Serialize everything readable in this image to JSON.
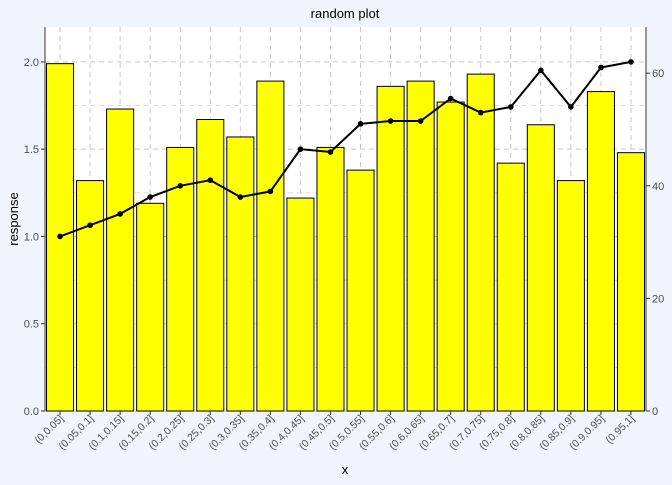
{
  "chart_data": {
    "type": "bar",
    "title": "random plot",
    "xlabel": "x",
    "ylabel": "response",
    "categories": [
      "(0,0.05]",
      "(0.05,0.1]",
      "(0.1,0.15]",
      "(0.15,0.2]",
      "(0.2,0.25]",
      "(0.25,0.3]",
      "(0.3,0.35]",
      "(0.35,0.4]",
      "(0.4,0.45]",
      "(0.45,0.5]",
      "(0.5,0.55]",
      "(0.55,0.6]",
      "(0.6,0.65]",
      "(0.65,0.7]",
      "(0.7,0.75]",
      "(0.75,0.8]",
      "(0.8,0.85]",
      "(0.85,0.9]",
      "(0.9,0.95]",
      "(0.95,1]"
    ],
    "series": [
      {
        "type": "bar",
        "axis": "left",
        "values": [
          1.99,
          1.32,
          1.73,
          1.19,
          1.51,
          1.67,
          1.57,
          1.89,
          1.22,
          1.51,
          1.38,
          1.86,
          1.89,
          1.77,
          1.93,
          1.42,
          1.64,
          1.32,
          1.83,
          1.48
        ],
        "fill": "#ffff00",
        "stroke": "#000000"
      },
      {
        "type": "line",
        "axis": "right",
        "values": [
          31.0,
          33.0,
          35.0,
          38.0,
          40.0,
          41.0,
          38.0,
          39.0,
          46.5,
          46.0,
          51.0,
          51.5,
          51.5,
          55.5,
          53.0,
          54.0,
          60.5,
          54.0,
          61.0,
          62.0
        ],
        "color": "#000000"
      }
    ],
    "ylim": [
      0,
      2.2
    ],
    "yticks": [
      0.0,
      0.5,
      1.0,
      1.5,
      2.0
    ],
    "ytick_labels": [
      "0.0",
      "0.5",
      "1.0",
      "1.5",
      "2.0"
    ],
    "y2lim": [
      0,
      68.2
    ],
    "y2ticks": [
      0,
      20,
      40,
      60
    ],
    "y2tick_labels": [
      "0",
      "20",
      "40",
      "60"
    ],
    "grid": true,
    "legend": "none",
    "colors": {
      "background": "#f0f4fc",
      "panel": "#ffffff",
      "grid": "#c8c8c8",
      "axis_text": "#4d4d4d"
    }
  }
}
